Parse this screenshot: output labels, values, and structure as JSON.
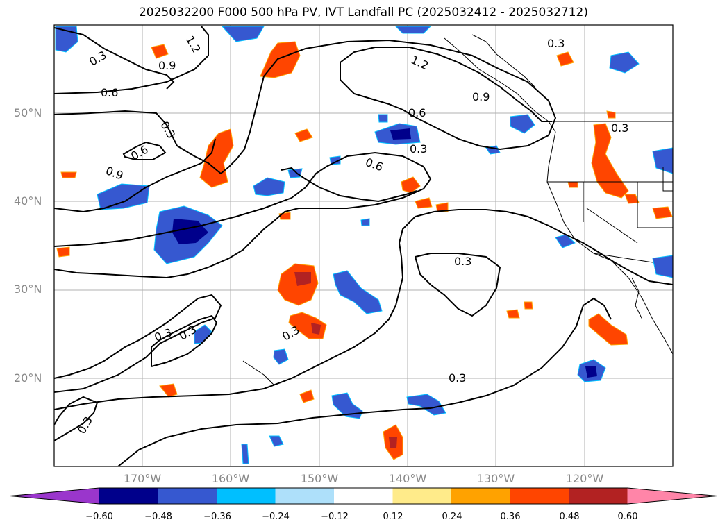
{
  "title": "2025032200 F000 500 hPa PV, IVT Landfall PC (2025032412 - 2025032712)",
  "map": {
    "lat_labels": [
      "50°N",
      "40°N",
      "30°N",
      "20°N"
    ],
    "lon_labels": [
      "170°W",
      "160°W",
      "150°W",
      "140°W",
      "130°W",
      "120°W"
    ],
    "contour_labels": [
      "0.3",
      "0.6",
      "0.9",
      "1.2",
      "0.3",
      "0.6",
      "0.9",
      "1.2",
      "0.3",
      "0.6",
      "0.3",
      "0.3",
      "0.3",
      "0.3",
      "0.3",
      "0.6",
      "0.9",
      "0.3",
      "0.3",
      "0.3"
    ]
  },
  "colorbar": {
    "colors": [
      "#9a36cc",
      "#00008b",
      "#3658d0",
      "#00bfff",
      "#aee0fa",
      "#ffffff",
      "#ffeb8a",
      "#ffa200",
      "#ff4500",
      "#b22222",
      "#ff85a8"
    ],
    "ticks": [
      "−0.60",
      "−0.48",
      "−0.36",
      "−0.24",
      "−0.12",
      "0.12",
      "0.24",
      "0.36",
      "0.48",
      "0.60"
    ]
  }
}
